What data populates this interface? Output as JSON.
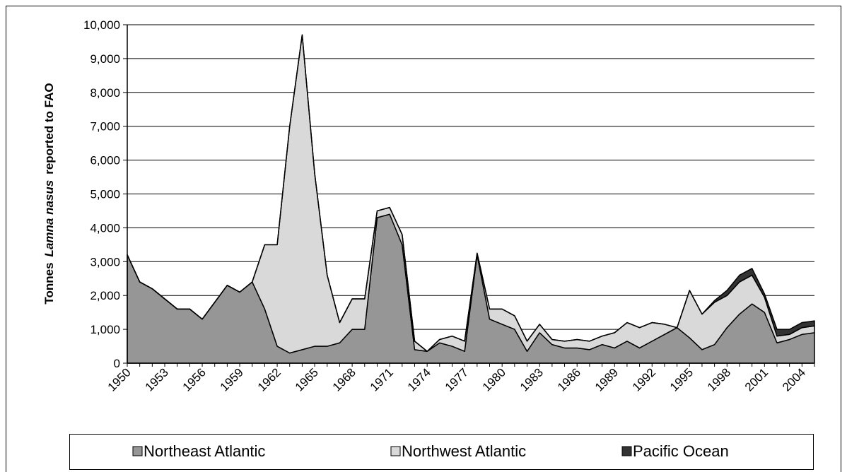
{
  "chart_data": {
    "type": "stacked-area",
    "y_label": [
      "Tonnes",
      "Lamna nasus",
      "reported to FAO"
    ],
    "categories": [
      "1950",
      null,
      null,
      "1953",
      null,
      null,
      "1956",
      null,
      null,
      "1959",
      null,
      null,
      "1962",
      null,
      null,
      "1965",
      null,
      null,
      "1968",
      null,
      null,
      "1971",
      null,
      null,
      "1974",
      null,
      null,
      "1977",
      null,
      null,
      "1980",
      null,
      null,
      "1983",
      null,
      null,
      "1986",
      null,
      null,
      "1989",
      null,
      null,
      "1992",
      null,
      null,
      "1995",
      null,
      null,
      "1998",
      null,
      null,
      "2001",
      null,
      null,
      "2004",
      null
    ],
    "series": [
      {
        "name": "Northeast Atlantic",
        "color": "#969696",
        "values": [
          3200,
          2400,
          2200,
          1900,
          1600,
          1600,
          1300,
          1800,
          2300,
          2100,
          2400,
          1600,
          500,
          300,
          400,
          500,
          500,
          600,
          1000,
          1000,
          4300,
          4400,
          3500,
          400,
          350,
          600,
          500,
          350,
          3200,
          1300,
          1150,
          1000,
          350,
          900,
          550,
          450,
          450,
          400,
          550,
          450,
          650,
          450,
          650,
          850,
          1050,
          750,
          400,
          550,
          1050,
          1450,
          1750,
          1500,
          600,
          700,
          850,
          900
        ]
      },
      {
        "name": "Northwest Atlantic",
        "color": "#d9d9d9",
        "values": [
          0,
          0,
          0,
          0,
          0,
          0,
          0,
          0,
          0,
          0,
          0,
          1900,
          3000,
          6700,
          9300,
          5100,
          2100,
          600,
          900,
          900,
          200,
          200,
          300,
          250,
          0,
          100,
          300,
          300,
          50,
          300,
          450,
          400,
          300,
          250,
          150,
          200,
          250,
          250,
          250,
          450,
          550,
          600,
          550,
          300,
          0,
          1400,
          1050,
          1250,
          950,
          950,
          850,
          450,
          200,
          150,
          200,
          200
        ]
      },
      {
        "name": "Pacific Ocean",
        "color": "#333333",
        "values": [
          0,
          0,
          0,
          0,
          0,
          0,
          0,
          0,
          0,
          0,
          0,
          0,
          0,
          0,
          0,
          0,
          0,
          0,
          0,
          0,
          0,
          0,
          0,
          0,
          0,
          0,
          0,
          0,
          0,
          0,
          0,
          0,
          0,
          0,
          0,
          0,
          0,
          0,
          0,
          0,
          0,
          0,
          0,
          0,
          0,
          0,
          0,
          50,
          150,
          200,
          200,
          100,
          200,
          150,
          150,
          150
        ]
      }
    ],
    "ylim": [
      0,
      10000
    ],
    "yticks": [
      0,
      {
        "value": 1000,
        "label": "1,000"
      },
      {
        "value": 2000,
        "label": "2,000"
      },
      {
        "value": 3000,
        "label": "3,000"
      },
      {
        "value": 4000,
        "label": "4,000"
      },
      {
        "value": 5000,
        "label": "5,000"
      },
      {
        "value": 6000,
        "label": "6,000"
      },
      {
        "value": 7000,
        "label": "7,000"
      },
      {
        "value": 8000,
        "label": "8,000"
      },
      {
        "value": 9000,
        "label": "9,000"
      },
      {
        "value": 10000,
        "label": "10,000"
      }
    ],
    "grid": true,
    "legend": "bottom"
  }
}
